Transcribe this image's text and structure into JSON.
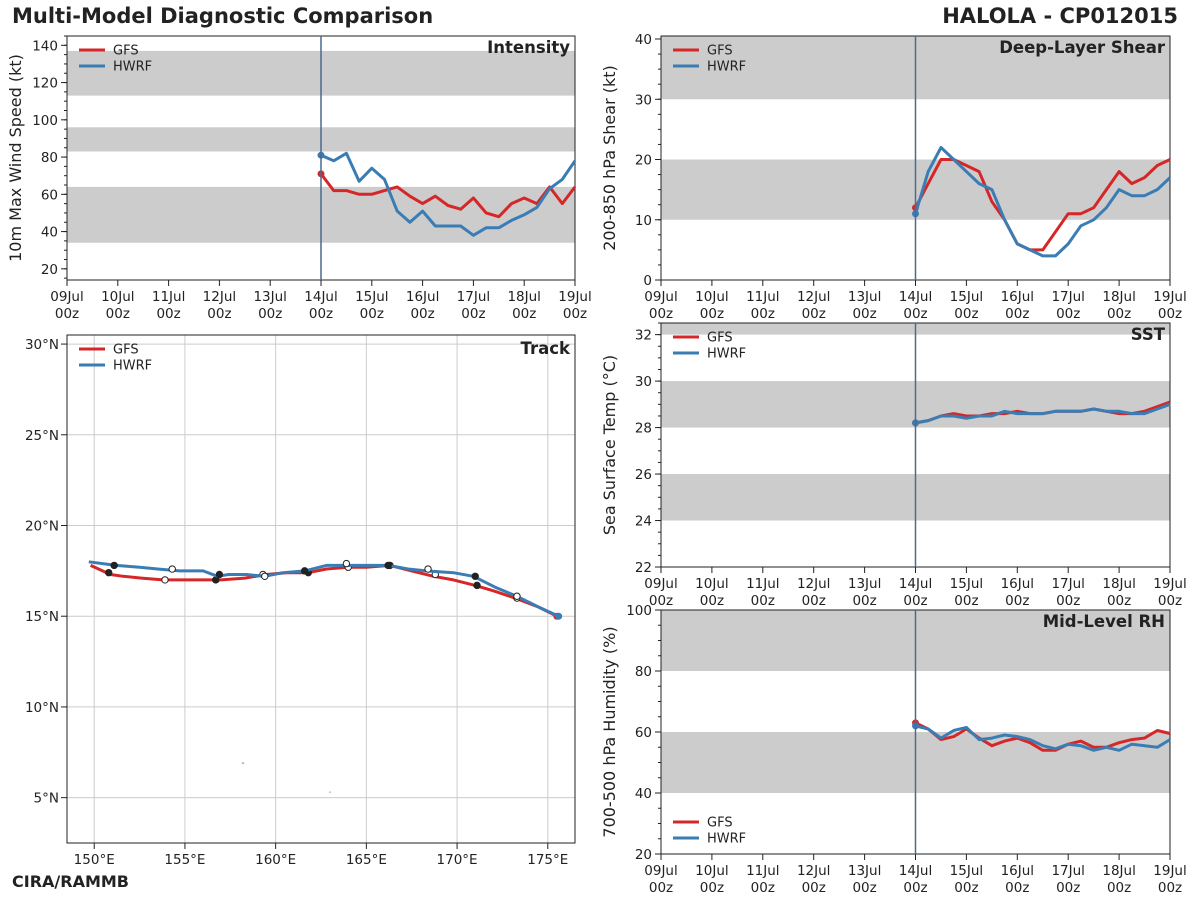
{
  "header": {
    "title": "Multi-Model Diagnostic Comparison",
    "storm": "HALOLA - CP012015",
    "credit": "CIRA/RAMMB"
  },
  "colors": {
    "GFS": "#d62728",
    "HWRF": "#3a7db5",
    "band": "#cccccc",
    "tzero": "#4a6a8e",
    "grid": "#cccccc"
  },
  "chart_data": [
    {
      "id": "intensity",
      "type": "line",
      "title": "Intensity",
      "ylabel": "10m Max Wind Speed (kt)",
      "ylim": [
        14,
        145
      ],
      "yticks": [
        20,
        40,
        60,
        80,
        100,
        120,
        140
      ],
      "xlim": [
        0,
        240
      ],
      "xticks": [
        0,
        24,
        48,
        72,
        96,
        120,
        144,
        168,
        192,
        216,
        240
      ],
      "xticklabels": [
        "09Jul\n00z",
        "10Jul\n00z",
        "11Jul\n00z",
        "12Jul\n00z",
        "13Jul\n00z",
        "14Jul\n00z",
        "15Jul\n00z",
        "16Jul\n00z",
        "17Jul\n00z",
        "18Jul\n00z",
        "19Jul\n00z"
      ],
      "t0": 120,
      "bands": [
        [
          34,
          64
        ],
        [
          83,
          96
        ],
        [
          113,
          137
        ]
      ],
      "legend": [
        "GFS",
        "HWRF"
      ],
      "legend_loc": "top-left",
      "series": [
        {
          "name": "GFS",
          "x": [
            120,
            126,
            132,
            138,
            144,
            150,
            156,
            162,
            168,
            174,
            180,
            186,
            192,
            198,
            204,
            210,
            216,
            222,
            228,
            234,
            240
          ],
          "y": [
            71,
            62,
            62,
            60,
            60,
            62,
            64,
            59,
            55,
            59,
            54,
            52,
            58,
            50,
            48,
            55,
            58,
            55,
            64,
            55,
            64
          ]
        },
        {
          "name": "HWRF",
          "x": [
            120,
            126,
            132,
            138,
            144,
            150,
            156,
            162,
            168,
            174,
            180,
            186,
            192,
            198,
            204,
            210,
            216,
            222,
            228,
            234,
            240
          ],
          "y": [
            81,
            78,
            82,
            67,
            74,
            68,
            51,
            45,
            51,
            43,
            43,
            43,
            38,
            42,
            42,
            46,
            49,
            53,
            63,
            68,
            78
          ]
        }
      ]
    },
    {
      "id": "shear",
      "type": "line",
      "title": "Deep-Layer Shear",
      "ylabel": "200-850 hPa Shear (kt)",
      "ylim": [
        0,
        40.5
      ],
      "yticks": [
        0,
        10,
        20,
        30,
        40
      ],
      "xlim": [
        0,
        240
      ],
      "xticks": [
        0,
        24,
        48,
        72,
        96,
        120,
        144,
        168,
        192,
        216,
        240
      ],
      "xticklabels": [
        "09Jul\n00z",
        "10Jul\n00z",
        "11Jul\n00z",
        "12Jul\n00z",
        "13Jul\n00z",
        "14Jul\n00z",
        "15Jul\n00z",
        "16Jul\n00z",
        "17Jul\n00z",
        "18Jul\n00z",
        "19Jul\n00z"
      ],
      "t0": 120,
      "bands": [
        [
          10,
          20
        ],
        [
          30,
          40.5
        ]
      ],
      "legend": [
        "GFS",
        "HWRF"
      ],
      "legend_loc": "top-left",
      "series": [
        {
          "name": "GFS",
          "x": [
            120,
            126,
            132,
            138,
            144,
            150,
            156,
            162,
            168,
            174,
            180,
            186,
            192,
            198,
            204,
            210,
            216,
            222,
            228,
            234,
            240
          ],
          "y": [
            12,
            16,
            20,
            20,
            19,
            18,
            13,
            10,
            6,
            5,
            5,
            8,
            11,
            11,
            12,
            15,
            18,
            16,
            17,
            19,
            20
          ]
        },
        {
          "name": "HWRF",
          "x": [
            120,
            126,
            132,
            138,
            144,
            150,
            156,
            162,
            168,
            174,
            180,
            186,
            192,
            198,
            204,
            210,
            216,
            222,
            228,
            234,
            240
          ],
          "y": [
            11,
            18,
            22,
            20,
            18,
            16,
            15,
            10,
            6,
            5,
            4,
            4,
            6,
            9,
            10,
            12,
            15,
            14,
            14,
            15,
            17
          ]
        }
      ]
    },
    {
      "id": "sst",
      "type": "line",
      "title": "SST",
      "ylabel": "Sea Surface Temp (°C)",
      "ylim": [
        22,
        32.5
      ],
      "yticks": [
        22,
        24,
        26,
        28,
        30,
        32
      ],
      "xlim": [
        0,
        240
      ],
      "xticks": [
        0,
        24,
        48,
        72,
        96,
        120,
        144,
        168,
        192,
        216,
        240
      ],
      "xticklabels": [
        "09Jul\n00z",
        "10Jul\n00z",
        "11Jul\n00z",
        "12Jul\n00z",
        "13Jul\n00z",
        "14Jul\n00z",
        "15Jul\n00z",
        "16Jul\n00z",
        "17Jul\n00z",
        "18Jul\n00z",
        "19Jul\n00z"
      ],
      "t0": 120,
      "bands": [
        [
          24,
          26
        ],
        [
          28,
          30
        ],
        [
          32,
          32.5
        ]
      ],
      "legend": [
        "GFS",
        "HWRF"
      ],
      "legend_loc": "top-left",
      "series": [
        {
          "name": "GFS",
          "x": [
            120,
            126,
            132,
            138,
            144,
            150,
            156,
            162,
            168,
            174,
            180,
            186,
            192,
            198,
            204,
            210,
            216,
            222,
            228,
            234,
            240
          ],
          "y": [
            28.2,
            28.3,
            28.5,
            28.6,
            28.5,
            28.5,
            28.6,
            28.6,
            28.7,
            28.6,
            28.6,
            28.7,
            28.7,
            28.7,
            28.8,
            28.7,
            28.6,
            28.6,
            28.7,
            28.9,
            29.1
          ]
        },
        {
          "name": "HWRF",
          "x": [
            120,
            126,
            132,
            138,
            144,
            150,
            156,
            162,
            168,
            174,
            180,
            186,
            192,
            198,
            204,
            210,
            216,
            222,
            228,
            234,
            240
          ],
          "y": [
            28.2,
            28.3,
            28.5,
            28.5,
            28.4,
            28.5,
            28.5,
            28.7,
            28.6,
            28.6,
            28.6,
            28.7,
            28.7,
            28.7,
            28.8,
            28.7,
            28.7,
            28.6,
            28.6,
            28.8,
            29.0
          ]
        }
      ]
    },
    {
      "id": "rh",
      "type": "line",
      "title": "Mid-Level RH",
      "ylabel": "700-500 hPa Humidity (%)",
      "ylim": [
        20,
        100
      ],
      "yticks": [
        20,
        40,
        60,
        80,
        100
      ],
      "xlim": [
        0,
        240
      ],
      "xticks": [
        0,
        24,
        48,
        72,
        96,
        120,
        144,
        168,
        192,
        216,
        240
      ],
      "xticklabels": [
        "09Jul\n00z",
        "10Jul\n00z",
        "11Jul\n00z",
        "12Jul\n00z",
        "13Jul\n00z",
        "14Jul\n00z",
        "15Jul\n00z",
        "16Jul\n00z",
        "17Jul\n00z",
        "18Jul\n00z",
        "19Jul\n00z"
      ],
      "t0": 120,
      "bands": [
        [
          40,
          60
        ],
        [
          80,
          100
        ]
      ],
      "legend": [
        "GFS",
        "HWRF"
      ],
      "legend_loc": "bottom-left",
      "series": [
        {
          "name": "GFS",
          "x": [
            120,
            126,
            132,
            138,
            144,
            150,
            156,
            162,
            168,
            174,
            180,
            186,
            192,
            198,
            204,
            210,
            216,
            222,
            228,
            234,
            240
          ],
          "y": [
            63,
            61,
            57.5,
            58.5,
            61,
            58,
            55.5,
            57,
            58,
            56.5,
            54,
            54,
            56,
            57,
            55,
            55,
            56.5,
            57.5,
            58,
            60.5,
            59.5
          ]
        },
        {
          "name": "HWRF",
          "x": [
            120,
            126,
            132,
            138,
            144,
            150,
            156,
            162,
            168,
            174,
            180,
            186,
            192,
            198,
            204,
            210,
            216,
            222,
            228,
            234,
            240
          ],
          "y": [
            62,
            61,
            58,
            60.5,
            61.5,
            57.5,
            58,
            59,
            58.5,
            57.5,
            55.5,
            54.5,
            56,
            55.5,
            54,
            55,
            54,
            56,
            55.5,
            55,
            57.5
          ]
        }
      ]
    },
    {
      "id": "track",
      "type": "scatter",
      "title": "Track",
      "xlim": [
        148.5,
        176.5
      ],
      "ylim": [
        2.5,
        30.5
      ],
      "xticks": [
        150,
        155,
        160,
        165,
        170,
        175
      ],
      "xticklabels": [
        "150°E",
        "155°E",
        "160°E",
        "165°E",
        "170°E",
        "175°E"
      ],
      "yticks": [
        5,
        10,
        15,
        20,
        25,
        30
      ],
      "yticklabels": [
        "5°N",
        "10°N",
        "15°N",
        "20°N",
        "25°N",
        "30°N"
      ],
      "legend": [
        "GFS",
        "HWRF"
      ],
      "legend_loc": "top-left",
      "series": [
        {
          "name": "GFS",
          "lon": [
            175.5,
            174.5,
            173.2,
            172.0,
            171.0,
            169.8,
            168.7,
            167.5,
            166.3,
            165.0,
            164.0,
            162.8,
            161.8,
            160.6,
            159.5,
            158.3,
            157.0,
            156.0,
            154.9,
            153.8,
            152.6,
            151.6,
            150.9,
            149.8
          ],
          "lat": [
            15.0,
            15.5,
            16.0,
            16.4,
            16.7,
            17.0,
            17.2,
            17.5,
            17.8,
            17.7,
            17.7,
            17.6,
            17.4,
            17.4,
            17.3,
            17.1,
            17.0,
            17.0,
            17.0,
            17.0,
            17.1,
            17.2,
            17.3,
            17.8
          ],
          "markers": [
            {
              "lon": 173.3,
              "lat": 16.0,
              "fill": "open"
            },
            {
              "lon": 171.1,
              "lat": 16.7,
              "fill": "solid"
            },
            {
              "lon": 168.8,
              "lat": 17.3,
              "fill": "open"
            },
            {
              "lon": 166.3,
              "lat": 17.8,
              "fill": "solid"
            },
            {
              "lon": 164.0,
              "lat": 17.7,
              "fill": "open"
            },
            {
              "lon": 161.8,
              "lat": 17.4,
              "fill": "solid"
            },
            {
              "lon": 159.3,
              "lat": 17.3,
              "fill": "open"
            },
            {
              "lon": 156.7,
              "lat": 17.0,
              "fill": "solid"
            },
            {
              "lon": 153.9,
              "lat": 17.0,
              "fill": "open"
            },
            {
              "lon": 150.8,
              "lat": 17.4,
              "fill": "solid"
            }
          ]
        },
        {
          "name": "HWRF",
          "lon": [
            175.6,
            174.5,
            173.3,
            172.1,
            170.9,
            169.8,
            168.3,
            167.3,
            166.2,
            165.0,
            163.9,
            162.8,
            161.6,
            160.4,
            159.4,
            158.4,
            157.4,
            156.8,
            156.0,
            154.7,
            153.5,
            152.5,
            151.2,
            149.7
          ],
          "lat": [
            15.0,
            15.5,
            16.1,
            16.6,
            17.2,
            17.4,
            17.5,
            17.6,
            17.8,
            17.8,
            17.8,
            17.8,
            17.5,
            17.4,
            17.2,
            17.3,
            17.3,
            17.2,
            17.5,
            17.5,
            17.6,
            17.7,
            17.8,
            18.0
          ],
          "markers": [
            {
              "lon": 173.3,
              "lat": 16.1,
              "fill": "open"
            },
            {
              "lon": 171.0,
              "lat": 17.2,
              "fill": "solid"
            },
            {
              "lon": 168.4,
              "lat": 17.6,
              "fill": "open"
            },
            {
              "lon": 166.2,
              "lat": 17.8,
              "fill": "solid"
            },
            {
              "lon": 163.9,
              "lat": 17.9,
              "fill": "open"
            },
            {
              "lon": 161.6,
              "lat": 17.5,
              "fill": "solid"
            },
            {
              "lon": 159.4,
              "lat": 17.2,
              "fill": "open"
            },
            {
              "lon": 156.9,
              "lat": 17.3,
              "fill": "solid"
            },
            {
              "lon": 154.3,
              "lat": 17.6,
              "fill": "open"
            },
            {
              "lon": 151.1,
              "lat": 17.8,
              "fill": "solid"
            }
          ]
        }
      ]
    }
  ]
}
